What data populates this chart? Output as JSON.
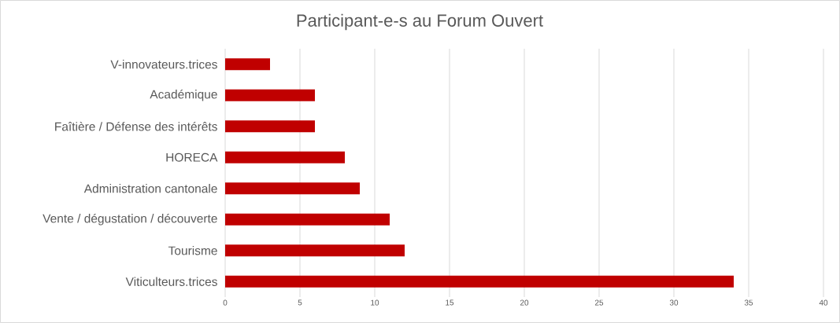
{
  "chart_data": {
    "type": "bar",
    "orientation": "horizontal",
    "title": "Participant-e-s au Forum Ouvert",
    "categories": [
      "V-innovateurs.trices",
      "Académique",
      "Faîtière / Défense des intérêts",
      "HORECA",
      "Administration cantonale",
      "Vente / dégustation / découverte",
      "Tourisme",
      "Viticulteurs.trices"
    ],
    "values": [
      3,
      6,
      6,
      8,
      9,
      11,
      12,
      34
    ],
    "color": "#c00000",
    "xlim": [
      0,
      40
    ],
    "xticks": [
      0,
      5,
      10,
      15,
      20,
      25,
      30,
      35,
      40
    ],
    "grid": "x"
  }
}
